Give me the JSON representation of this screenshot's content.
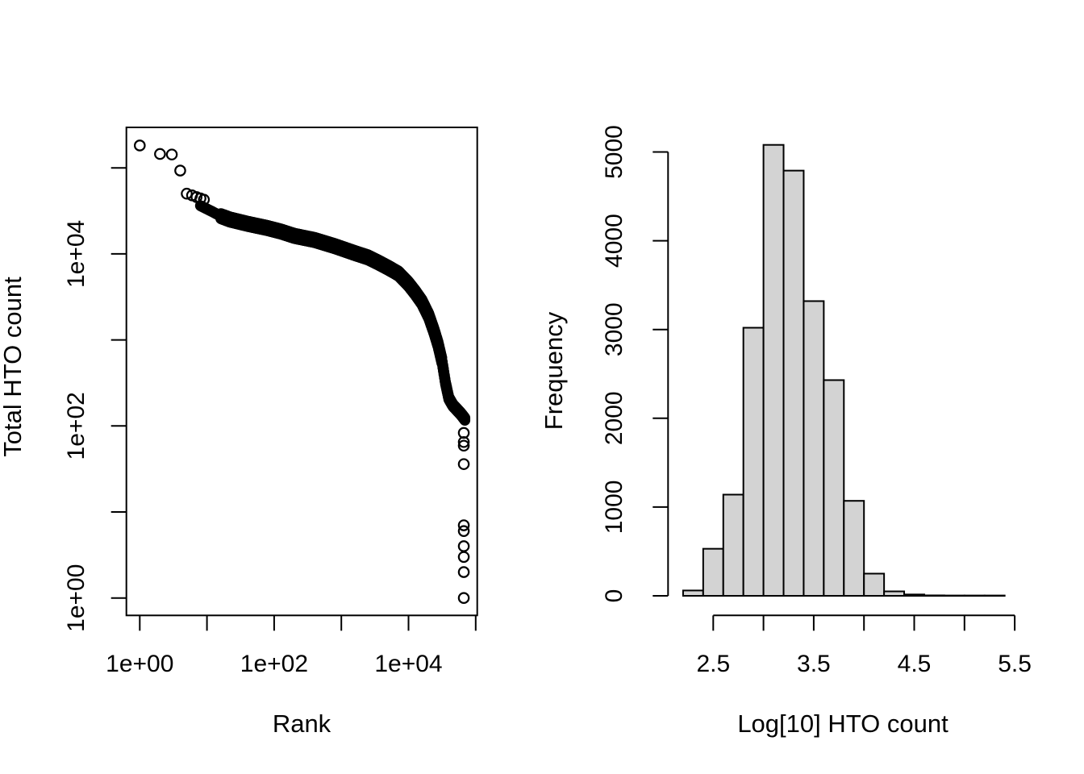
{
  "figure": {
    "background": "#ffffff",
    "foreground": "#000000"
  },
  "left_plot": {
    "xlabel": "Rank",
    "ylabel": "Total HTO count",
    "x_ticks": [
      {
        "pos": 0,
        "label": "1e+00"
      },
      {
        "pos": 1,
        "label": ""
      },
      {
        "pos": 2,
        "label": "1e+02"
      },
      {
        "pos": 3,
        "label": ""
      },
      {
        "pos": 4,
        "label": "1e+04"
      },
      {
        "pos": 5,
        "label": ""
      }
    ],
    "y_ticks": [
      {
        "pos": 0,
        "label": "1e+00"
      },
      {
        "pos": 1,
        "label": ""
      },
      {
        "pos": 2,
        "label": "1e+02"
      },
      {
        "pos": 3,
        "label": ""
      },
      {
        "pos": 4,
        "label": "1e+04"
      },
      {
        "pos": 5,
        "label": ""
      }
    ]
  },
  "right_plot": {
    "xlabel": "Log[10] HTO count",
    "ylabel": "Frequency",
    "x_ticks": [
      {
        "value": 2.5,
        "label": "2.5"
      },
      {
        "value": 3.0,
        "label": ""
      },
      {
        "value": 3.5,
        "label": "3.5"
      },
      {
        "value": 4.0,
        "label": ""
      },
      {
        "value": 4.5,
        "label": "4.5"
      },
      {
        "value": 5.0,
        "label": ""
      },
      {
        "value": 5.5,
        "label": "5.5"
      }
    ],
    "y_ticks": [
      {
        "value": 0,
        "label": "0"
      },
      {
        "value": 1000,
        "label": "1000"
      },
      {
        "value": 2000,
        "label": "2000"
      },
      {
        "value": 3000,
        "label": "3000"
      },
      {
        "value": 4000,
        "label": "4000"
      },
      {
        "value": 5000,
        "label": "5000"
      }
    ]
  },
  "chart_data": [
    {
      "type": "scatter",
      "title": "",
      "xlabel": "Rank",
      "ylabel": "Total HTO count",
      "x_scale": "log10",
      "y_scale": "log10",
      "xlim": [
        0.63,
        105000
      ],
      "ylim": [
        0.63,
        300000
      ],
      "marker": "open-circle",
      "marker_color": "#000000",
      "head_points": [
        [
          1,
          182000
        ],
        [
          2,
          145000
        ],
        [
          3,
          143000
        ],
        [
          4,
          93000
        ],
        [
          5,
          50100
        ],
        [
          6,
          47900
        ],
        [
          7,
          45700
        ],
        [
          8,
          44200
        ],
        [
          9,
          42700
        ]
      ],
      "profile": [
        [
          8,
          36300
        ],
        [
          12,
          31000
        ],
        [
          16,
          27500
        ],
        [
          22,
          25100
        ],
        [
          40,
          22400
        ],
        [
          79,
          20000
        ],
        [
          126,
          18200
        ],
        [
          200,
          16200
        ],
        [
          400,
          14500
        ],
        [
          800,
          12300
        ],
        [
          1600,
          10200
        ],
        [
          2500,
          9100
        ],
        [
          3550,
          7950
        ],
        [
          5000,
          6900
        ],
        [
          7100,
          5900
        ],
        [
          10000,
          4470
        ],
        [
          12600,
          3550
        ],
        [
          15850,
          2750
        ],
        [
          20000,
          1900
        ],
        [
          24000,
          1260
        ],
        [
          27500,
          890
        ],
        [
          31600,
          560
        ],
        [
          35500,
          316
        ],
        [
          39800,
          210
        ],
        [
          45700,
          174
        ],
        [
          52500,
          155
        ],
        [
          60250,
          138
        ],
        [
          66000,
          126
        ],
        [
          69200,
          120
        ]
      ],
      "tail_rank": 66500,
      "tail_counts": [
        83,
        65,
        59,
        36,
        7,
        6,
        4,
        3,
        2,
        1
      ]
    },
    {
      "type": "bar",
      "subtype": "histogram",
      "title": "",
      "xlabel": "Log[10] HTO count",
      "ylabel": "Frequency",
      "bin_start": 2.2,
      "bin_width": 0.2,
      "counts": [
        60,
        530,
        1140,
        3020,
        5080,
        4790,
        3320,
        2430,
        1070,
        250,
        50,
        15,
        5,
        3,
        2,
        2
      ],
      "xlim": [
        2.2,
        5.5
      ],
      "ylim": [
        0,
        5080
      ],
      "bar_fill": "#d3d3d3",
      "bar_border": "#000000",
      "grid": false,
      "legend": false
    }
  ]
}
